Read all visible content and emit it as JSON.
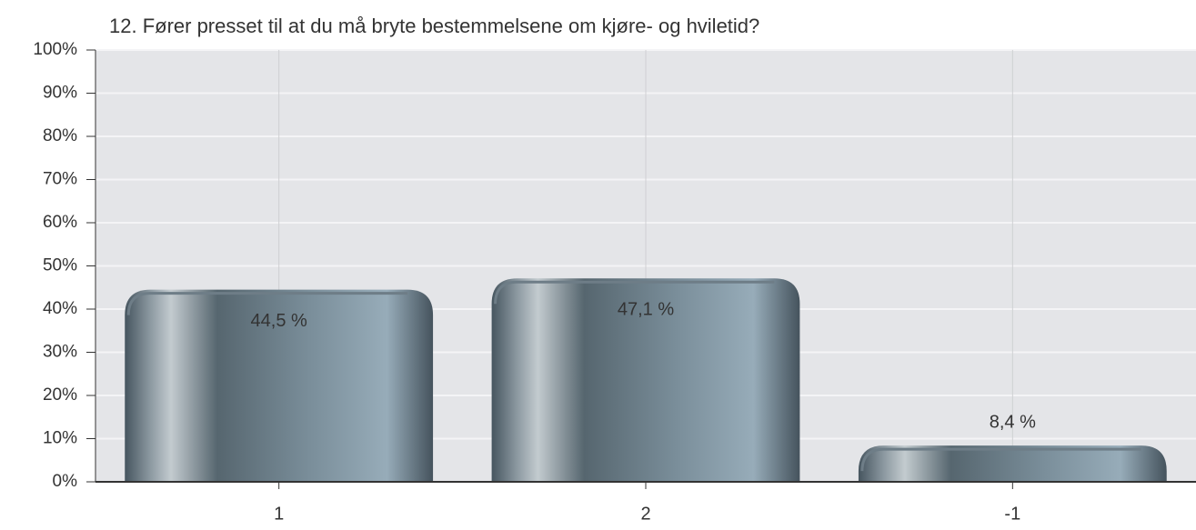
{
  "chart_data": {
    "type": "bar",
    "title": "12. Fører presset til at du må bryte bestemmelsene om kjøre- og hviletid?",
    "categories": [
      "1",
      "2",
      "-1"
    ],
    "values": [
      44.5,
      47.1,
      8.4
    ],
    "value_labels": [
      "44,5 %",
      "47,1 %",
      "8,4 %"
    ],
    "ylim": [
      0,
      100
    ],
    "yticks": [
      {
        "value": 0,
        "label": "0%"
      },
      {
        "value": 10,
        "label": "10%"
      },
      {
        "value": 20,
        "label": "20%"
      },
      {
        "value": 30,
        "label": "30%"
      },
      {
        "value": 40,
        "label": "40%"
      },
      {
        "value": 50,
        "label": "50%"
      },
      {
        "value": 60,
        "label": "60%"
      },
      {
        "value": 70,
        "label": "70%"
      },
      {
        "value": 80,
        "label": "80%"
      },
      {
        "value": 90,
        "label": "90%"
      },
      {
        "value": 100,
        "label": "100%"
      }
    ],
    "grid": true
  }
}
